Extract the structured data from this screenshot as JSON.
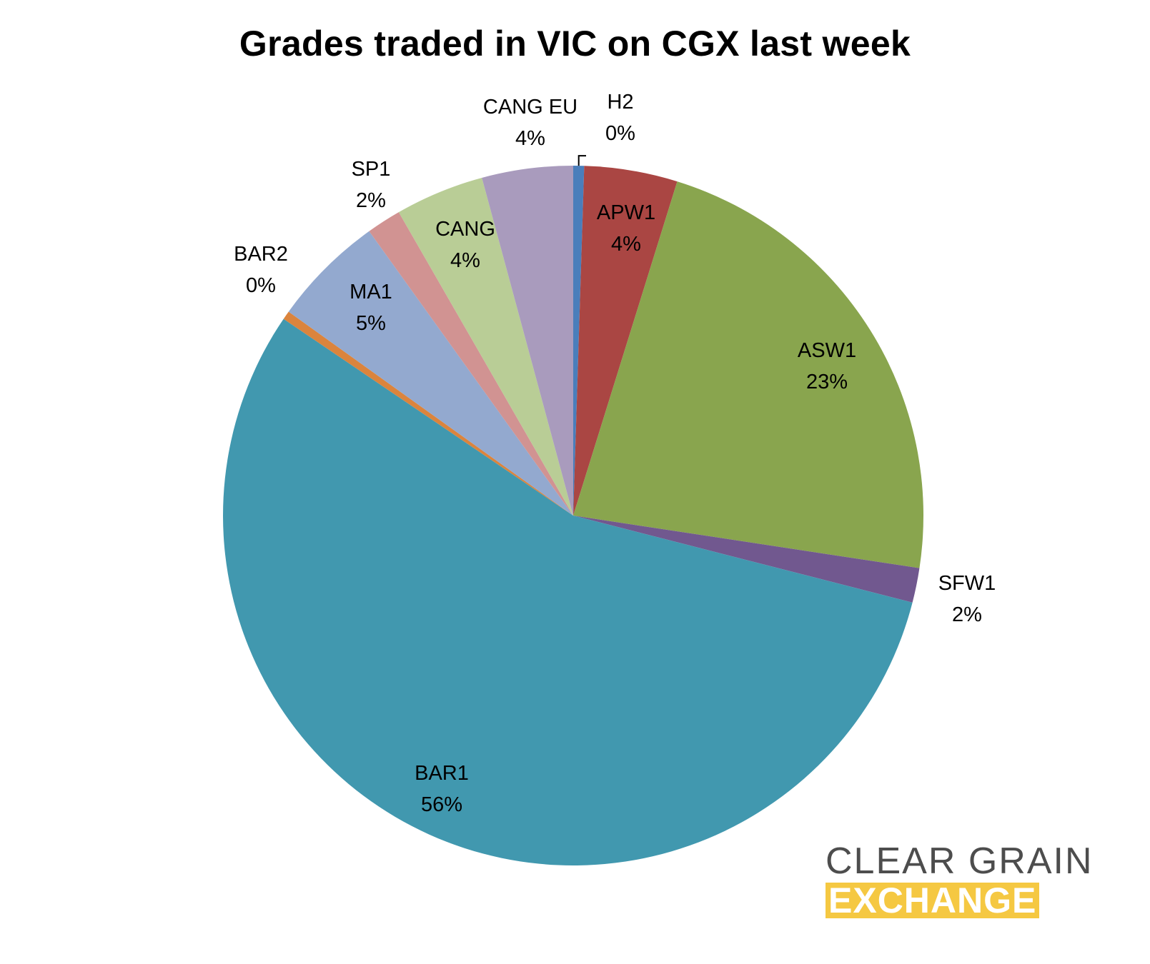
{
  "chart_data": {
    "type": "pie",
    "title": "Grades traded in VIC on CGX last week",
    "slices": [
      {
        "name": "H2",
        "label": "0%",
        "value": 0.5,
        "color": "#4a7ebb"
      },
      {
        "name": "APW1",
        "label": "4%",
        "value": 4.3,
        "color": "#aa4643"
      },
      {
        "name": "ASW1",
        "label": "23%",
        "value": 22.6,
        "color": "#89a54e"
      },
      {
        "name": "SFW1",
        "label": "2%",
        "value": 1.6,
        "color": "#71588f"
      },
      {
        "name": "BAR1",
        "label": "56%",
        "value": 55.5,
        "color": "#4198af"
      },
      {
        "name": "BAR2",
        "label": "0%",
        "value": 0.4,
        "color": "#db843d"
      },
      {
        "name": "MA1",
        "label": "5%",
        "value": 5.2,
        "color": "#93a9cf"
      },
      {
        "name": "SP1",
        "label": "2%",
        "value": 1.6,
        "color": "#d19392"
      },
      {
        "name": "CANG",
        "label": "4%",
        "value": 4.1,
        "color": "#b9cd96"
      },
      {
        "name": "CANG EU",
        "label": "4%",
        "value": 4.2,
        "color": "#a99bbd"
      }
    ],
    "start": "12 o'clock",
    "direction": "clockwise",
    "legend": "none"
  },
  "logo": {
    "line1": "CLEAR GRAIN",
    "line2": "EXCHANGE",
    "text_color": "#4d4d4d",
    "accent_color": "#f5c842"
  }
}
